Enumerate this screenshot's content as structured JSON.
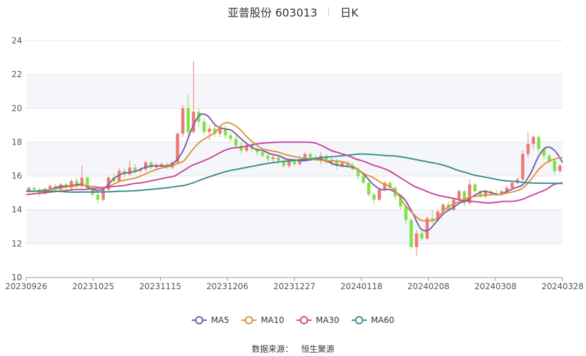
{
  "title": {
    "main": "亚普股份 603013",
    "period": "日K"
  },
  "source": {
    "label": "数据来源：",
    "value": "恒生聚源"
  },
  "colors": {
    "up": "#f07878",
    "down": "#7ee24a",
    "grid": "#e6e6e6",
    "band": "#f5f6fa"
  },
  "chart_data": {
    "type": "candlestick",
    "ylim": [
      10,
      24
    ],
    "yticks": [
      "10",
      "12",
      "14",
      "16",
      "18",
      "20",
      "22",
      "24"
    ],
    "xticks": [
      "20230926",
      "20231025",
      "20231115",
      "20231206",
      "20231227",
      "20240118",
      "20240208",
      "20240308",
      "20240328"
    ],
    "legend_position": "bottom",
    "series": [
      {
        "name": "MA5",
        "color": "#7b5ea7",
        "values": [
          15.1,
          15.1,
          15.15,
          15.2,
          15.35,
          15.4,
          15.45,
          15.5,
          15.3,
          15.15,
          15.3,
          15.8,
          16.1,
          16.2,
          16.3,
          16.5,
          16.6,
          16.6,
          16.6,
          16.9,
          17.6,
          18.8,
          19.6,
          19.55,
          19.0,
          18.8,
          18.7,
          18.3,
          17.9,
          17.6,
          17.5,
          17.3,
          17.2,
          17.0,
          16.95,
          16.9,
          16.95,
          17.0,
          16.9,
          16.7,
          16.6,
          16.55,
          16.4,
          16.0,
          15.5,
          15.2,
          15.2,
          15.0,
          14.6,
          13.8,
          12.9,
          12.8,
          13.3,
          13.8,
          14.1,
          14.4,
          14.6,
          14.9,
          15.1,
          15.0,
          14.9,
          15.1,
          15.3,
          15.5,
          16.2,
          17.2,
          17.7,
          17.5,
          16.8
        ]
      },
      {
        "name": "MA10",
        "color": "#e0923e",
        "values": [
          15.1,
          15.1,
          15.15,
          15.2,
          15.25,
          15.35,
          15.4,
          15.45,
          15.4,
          15.35,
          15.3,
          15.5,
          15.7,
          15.8,
          15.9,
          16.1,
          16.3,
          16.45,
          16.55,
          16.7,
          16.9,
          17.5,
          18.0,
          18.3,
          18.6,
          19.1,
          19.1,
          18.8,
          18.3,
          17.9,
          17.6,
          17.5,
          17.4,
          17.25,
          17.15,
          17.05,
          17.0,
          16.95,
          16.9,
          16.9,
          16.85,
          16.7,
          16.4,
          16.1,
          15.9,
          15.6,
          15.4,
          15.0,
          14.3,
          13.8,
          13.4,
          13.35,
          13.45,
          14.0,
          14.3,
          14.5,
          14.7,
          14.8,
          14.85,
          14.9,
          14.9,
          15.0,
          15.1,
          15.3,
          15.8,
          16.4,
          16.8,
          17.0,
          17.1
        ]
      },
      {
        "name": "MA30",
        "color": "#c9479b",
        "values": [
          14.9,
          14.95,
          15.0,
          15.05,
          15.1,
          15.15,
          15.2,
          15.2,
          15.25,
          15.3,
          15.35,
          15.4,
          15.45,
          15.55,
          15.6,
          15.7,
          15.8,
          15.9,
          16.0,
          16.3,
          16.6,
          16.8,
          17.0,
          17.25,
          17.5,
          17.65,
          17.7,
          17.8,
          17.9,
          17.95,
          17.98,
          18.0,
          18.0,
          18.0,
          18.0,
          17.95,
          17.75,
          17.5,
          17.35,
          17.2,
          17.0,
          16.85,
          16.65,
          16.5,
          16.3,
          16.0,
          15.7,
          15.4,
          15.2,
          15.0,
          14.85,
          14.75,
          14.65,
          14.55,
          14.5,
          14.45,
          14.4,
          14.45,
          14.5,
          14.5,
          14.6,
          14.8,
          15.0,
          15.2,
          15.5,
          15.6
        ]
      },
      {
        "name": "MA60",
        "color": "#3a8f8f",
        "values": [
          15.1,
          15.1,
          15.1,
          15.1,
          15.08,
          15.05,
          15.05,
          15.05,
          15.05,
          15.06,
          15.08,
          15.1,
          15.12,
          15.15,
          15.2,
          15.25,
          15.3,
          15.38,
          15.45,
          15.6,
          15.8,
          15.98,
          16.15,
          16.3,
          16.4,
          16.5,
          16.6,
          16.7,
          16.78,
          16.85,
          16.9,
          16.95,
          17.0,
          17.05,
          17.1,
          17.15,
          17.2,
          17.25,
          17.3,
          17.28,
          17.25,
          17.2,
          17.18,
          17.1,
          17.0,
          16.9,
          16.8,
          16.7,
          16.55,
          16.35,
          16.2,
          16.05,
          15.95,
          15.85,
          15.75,
          15.7,
          15.65,
          15.6,
          15.58,
          15.57,
          15.57,
          15.56
        ]
      }
    ],
    "candles": [
      [
        15.1,
        15.3,
        15.35,
        15.0
      ],
      [
        15.3,
        15.2,
        15.4,
        15.1
      ],
      [
        15.2,
        14.95,
        15.3,
        14.8
      ],
      [
        14.95,
        15.25,
        15.3,
        14.9
      ],
      [
        15.25,
        15.4,
        15.5,
        15.15
      ],
      [
        15.4,
        15.2,
        15.5,
        15.1
      ],
      [
        15.2,
        15.5,
        15.6,
        15.1
      ],
      [
        15.5,
        15.3,
        15.6,
        15.2
      ],
      [
        15.3,
        15.7,
        15.8,
        15.2
      ],
      [
        15.7,
        15.4,
        15.9,
        15.3
      ],
      [
        15.4,
        15.9,
        16.6,
        15.3
      ],
      [
        15.9,
        15.3,
        16.0,
        15.2
      ],
      [
        15.3,
        14.9,
        15.4,
        14.8
      ],
      [
        14.9,
        14.6,
        15.0,
        14.4
      ],
      [
        14.6,
        15.2,
        15.3,
        14.5
      ],
      [
        15.2,
        15.9,
        16.0,
        15.1
      ],
      [
        15.9,
        15.7,
        16.2,
        15.6
      ],
      [
        15.7,
        16.3,
        16.5,
        15.6
      ],
      [
        16.3,
        16.1,
        16.5,
        15.9
      ],
      [
        16.1,
        16.5,
        16.9,
        16.0
      ],
      [
        16.5,
        16.3,
        16.7,
        16.1
      ],
      [
        16.3,
        16.4,
        16.5,
        16.2
      ],
      [
        16.4,
        16.8,
        16.9,
        16.3
      ],
      [
        16.8,
        16.5,
        16.9,
        16.4
      ],
      [
        16.5,
        16.6,
        16.8,
        16.4
      ],
      [
        16.6,
        16.7,
        16.8,
        16.5
      ],
      [
        16.7,
        16.5,
        16.8,
        16.4
      ],
      [
        16.5,
        16.8,
        16.9,
        16.4
      ],
      [
        16.8,
        18.5,
        18.6,
        16.7
      ],
      [
        18.5,
        20.0,
        20.2,
        18.3
      ],
      [
        20.0,
        18.6,
        20.8,
        18.4
      ],
      [
        18.6,
        19.8,
        22.8,
        18.5
      ],
      [
        19.8,
        19.2,
        20.0,
        18.9
      ],
      [
        19.2,
        18.6,
        19.4,
        18.4
      ],
      [
        18.6,
        18.8,
        19.0,
        18.1
      ],
      [
        18.8,
        18.5,
        19.0,
        18.3
      ],
      [
        18.5,
        18.8,
        18.9,
        18.3
      ],
      [
        18.8,
        18.4,
        19.0,
        18.2
      ],
      [
        18.4,
        18.2,
        18.6,
        18.0
      ],
      [
        18.2,
        17.8,
        18.4,
        17.6
      ],
      [
        17.8,
        17.5,
        18.0,
        17.3
      ],
      [
        17.5,
        17.8,
        17.9,
        17.4
      ],
      [
        17.8,
        17.6,
        17.9,
        17.4
      ],
      [
        17.6,
        17.4,
        17.7,
        17.2
      ],
      [
        17.4,
        17.2,
        17.6,
        17.1
      ],
      [
        17.2,
        17.0,
        17.3,
        16.8
      ],
      [
        17.0,
        17.1,
        17.2,
        16.8
      ],
      [
        17.1,
        16.9,
        17.2,
        16.7
      ],
      [
        16.9,
        16.6,
        17.0,
        16.5
      ],
      [
        16.6,
        16.9,
        17.0,
        16.5
      ],
      [
        16.9,
        16.7,
        17.0,
        16.6
      ],
      [
        16.7,
        17.0,
        17.2,
        16.6
      ],
      [
        17.0,
        17.3,
        17.4,
        16.9
      ],
      [
        17.3,
        17.1,
        17.4,
        17.0
      ],
      [
        17.1,
        17.0,
        17.3,
        16.9
      ],
      [
        17.0,
        17.2,
        17.4,
        16.7
      ],
      [
        17.2,
        16.8,
        17.3,
        16.7
      ],
      [
        16.8,
        16.9,
        17.1,
        16.6
      ],
      [
        16.9,
        16.6,
        17.0,
        16.4
      ],
      [
        16.6,
        16.8,
        16.9,
        16.5
      ],
      [
        16.8,
        16.6,
        16.9,
        16.5
      ],
      [
        16.6,
        16.4,
        16.8,
        16.3
      ],
      [
        16.4,
        16.0,
        16.5,
        15.8
      ],
      [
        16.0,
        15.6,
        16.1,
        15.5
      ],
      [
        15.6,
        14.9,
        15.7,
        14.8
      ],
      [
        14.9,
        14.6,
        15.0,
        14.3
      ],
      [
        14.6,
        15.2,
        15.3,
        14.5
      ],
      [
        15.2,
        15.6,
        15.7,
        15.1
      ],
      [
        15.6,
        15.3,
        15.7,
        15.2
      ],
      [
        15.3,
        14.8,
        15.4,
        14.6
      ],
      [
        14.8,
        14.2,
        14.9,
        14.0
      ],
      [
        14.2,
        13.4,
        14.3,
        13.2
      ],
      [
        13.4,
        11.8,
        13.5,
        11.7
      ],
      [
        11.8,
        12.6,
        12.8,
        11.3
      ],
      [
        12.6,
        12.3,
        12.8,
        12.2
      ],
      [
        12.3,
        13.5,
        13.6,
        12.2
      ],
      [
        13.5,
        13.4,
        14.0,
        13.2
      ],
      [
        13.4,
        13.9,
        14.0,
        13.3
      ],
      [
        13.9,
        14.3,
        14.4,
        13.8
      ],
      [
        14.3,
        14.0,
        14.5,
        13.9
      ],
      [
        14.0,
        14.6,
        14.7,
        13.9
      ],
      [
        14.6,
        15.1,
        15.2,
        14.5
      ],
      [
        15.1,
        14.4,
        15.2,
        14.2
      ],
      [
        14.4,
        15.5,
        15.8,
        14.3
      ],
      [
        15.5,
        15.1,
        15.6,
        15.0
      ],
      [
        15.1,
        14.8,
        15.2,
        14.7
      ],
      [
        14.8,
        15.1,
        15.2,
        14.7
      ],
      [
        15.1,
        15.0,
        15.2,
        14.8
      ],
      [
        15.0,
        14.9,
        15.2,
        14.8
      ],
      [
        14.9,
        15.1,
        15.2,
        14.8
      ],
      [
        15.1,
        15.3,
        15.4,
        15.0
      ],
      [
        15.3,
        15.6,
        15.7,
        15.2
      ],
      [
        15.6,
        15.8,
        15.9,
        15.5
      ],
      [
        15.8,
        17.3,
        17.5,
        15.7
      ],
      [
        17.3,
        17.9,
        18.6,
        17.1
      ],
      [
        17.9,
        18.3,
        18.4,
        17.6
      ],
      [
        18.3,
        17.6,
        18.4,
        17.4
      ],
      [
        17.6,
        17.2,
        17.7,
        17.0
      ],
      [
        17.2,
        16.9,
        17.3,
        16.7
      ],
      [
        16.9,
        16.3,
        17.0,
        16.1
      ],
      [
        16.3,
        16.6,
        16.7,
        16.2
      ]
    ]
  }
}
